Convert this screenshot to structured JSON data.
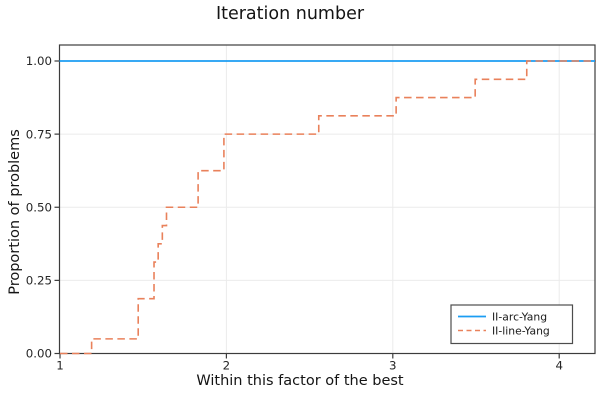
{
  "chart_data": {
    "type": "line",
    "title": "Iteration number",
    "xlabel": "Within this factor of the best",
    "ylabel": "Proportion of problems",
    "xlim": [
      1,
      4.22
    ],
    "ylim": [
      0,
      1.055
    ],
    "grid": true,
    "legend_position": "bottom-right",
    "x_ticks": [
      1,
      2,
      3,
      4
    ],
    "x_tick_labels": [
      "1",
      "2",
      "3",
      "4"
    ],
    "y_ticks": [
      0,
      0.25,
      0.5,
      0.75,
      1
    ],
    "y_tick_labels": [
      "0.00",
      "0.25",
      "0.50",
      "0.75",
      "1.00"
    ],
    "series": [
      {
        "name": "II-arc-Yang",
        "color": "#1B9DF3",
        "line_style": "solid",
        "kind": "constant-line",
        "points": [
          [
            1,
            1.0
          ],
          [
            4.22,
            1.0
          ]
        ]
      },
      {
        "name": "II-line-Yang",
        "color": "#E9815B",
        "line_style": "dashed",
        "kind": "step",
        "step_points": [
          [
            1.0,
            0.0
          ],
          [
            1.19,
            0.05
          ],
          [
            1.47,
            0.1875
          ],
          [
            1.565,
            0.3125
          ],
          [
            1.59,
            0.375
          ],
          [
            1.615,
            0.4375
          ],
          [
            1.64,
            0.5
          ],
          [
            1.83,
            0.625
          ],
          [
            1.985,
            0.75
          ],
          [
            2.555,
            0.8125
          ],
          [
            3.02,
            0.875
          ],
          [
            3.495,
            0.9375
          ],
          [
            3.805,
            1.0
          ]
        ],
        "end_x": 4.22
      }
    ]
  },
  "colors": {
    "grid": "#EBEBEB",
    "frame": "#3C3C3C",
    "legend_border": "#4D4D4D",
    "background": "#FFFFFF"
  }
}
